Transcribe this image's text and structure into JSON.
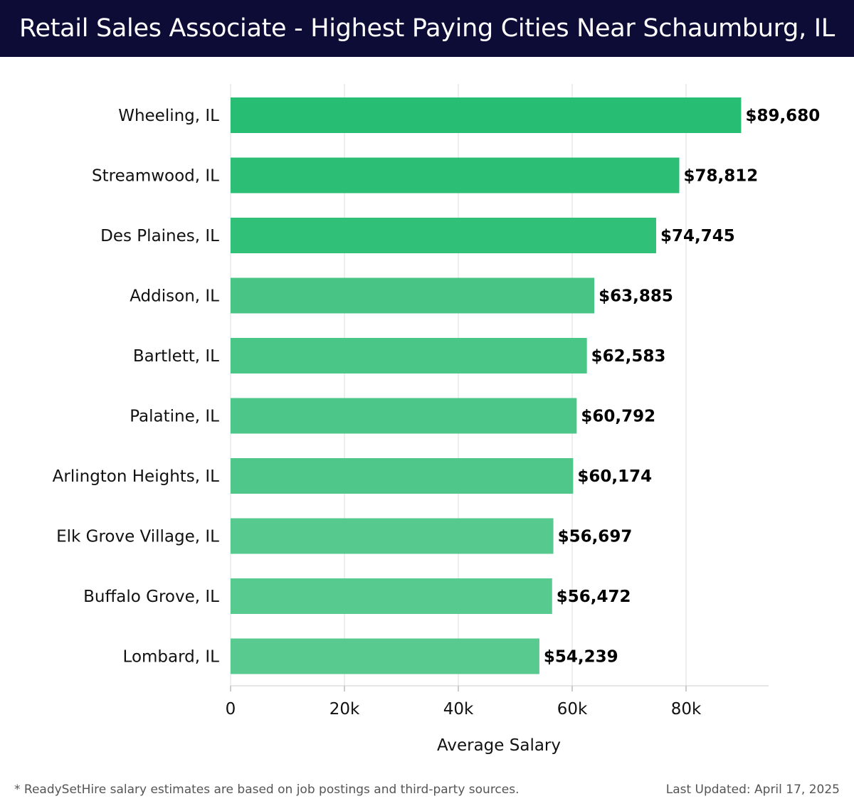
{
  "header": {
    "title": "Retail Sales Associate - Highest Paying Cities Near Schaumburg, IL"
  },
  "chart_data": {
    "type": "bar",
    "orientation": "horizontal",
    "title": "Retail Sales Associate - Highest Paying Cities Near Schaumburg, IL",
    "xlabel": "Average Salary",
    "ylabel": "",
    "categories": [
      "Wheeling, IL",
      "Streamwood, IL",
      "Des Plaines, IL",
      "Addison, IL",
      "Bartlett, IL",
      "Palatine, IL",
      "Arlington Heights, IL",
      "Elk Grove Village, IL",
      "Buffalo Grove, IL",
      "Lombard, IL"
    ],
    "values": [
      89680,
      78812,
      74745,
      63885,
      62583,
      60792,
      60174,
      56697,
      56472,
      54239
    ],
    "data_labels": [
      "$89,680",
      "$78,812",
      "$74,745",
      "$63,885",
      "$62,583",
      "$60,792",
      "$60,174",
      "$56,697",
      "$56,472",
      "$54,239"
    ],
    "xlim": [
      0,
      94500
    ],
    "xticks": [
      0,
      20000,
      40000,
      60000,
      80000
    ],
    "xtick_labels": [
      "0",
      "20k",
      "40k",
      "60k",
      "80k"
    ],
    "grid": "vertical",
    "legend": "none",
    "colors": [
      "#27bd72",
      "#2cbe75",
      "#30c077",
      "#48c585",
      "#4ac687",
      "#4dc789",
      "#4fc78a",
      "#55c98e",
      "#56ca8f",
      "#58ca90"
    ]
  },
  "footer": {
    "note": "* ReadySetHire salary estimates are based on job postings and third-party sources.",
    "updated": "Last Updated: April 17, 2025"
  }
}
